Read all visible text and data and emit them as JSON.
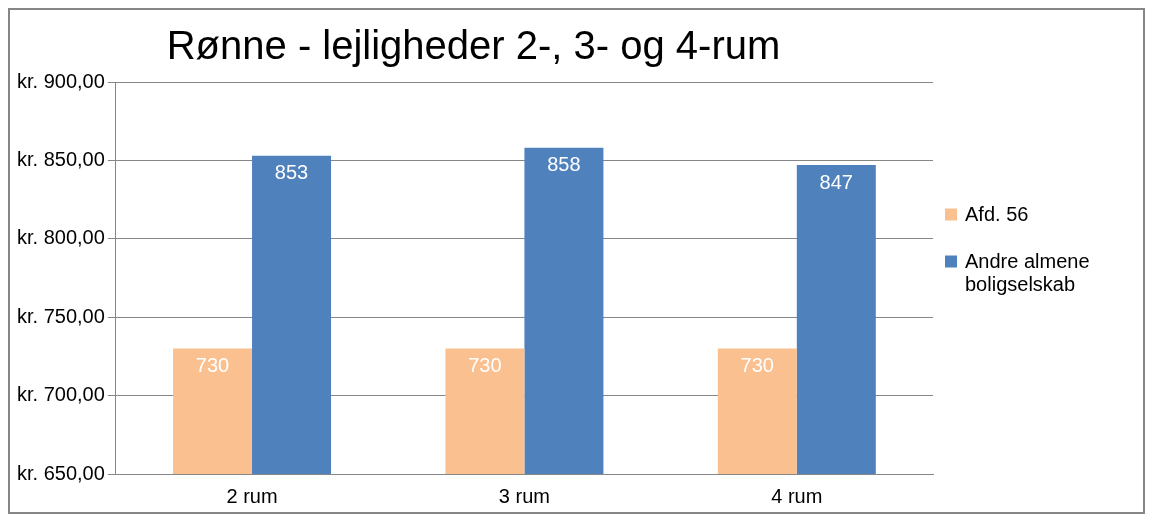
{
  "chart_data": {
    "type": "bar",
    "title": "Rønne - lejligheder 2-, 3- og 4-rum",
    "categories": [
      "2 rum",
      "3 rum",
      "4 rum"
    ],
    "series": [
      {
        "name": "Afd. 56",
        "color": "#fac090",
        "values": [
          730,
          730,
          730
        ]
      },
      {
        "name": "Andre almene boligselskab",
        "color": "#4f81bd",
        "values": [
          853,
          858,
          847
        ]
      }
    ],
    "ylim": [
      650,
      900
    ],
    "yticks": [
      {
        "value": 650,
        "label": "kr. 650,00"
      },
      {
        "value": 700,
        "label": "kr. 700,00"
      },
      {
        "value": 750,
        "label": "kr. 750,00"
      },
      {
        "value": 800,
        "label": "kr. 800,00"
      },
      {
        "value": 850,
        "label": "kr. 850,00"
      },
      {
        "value": 900,
        "label": "kr. 900,00"
      }
    ],
    "grid": "y",
    "legend": "right",
    "data_labels": true
  }
}
